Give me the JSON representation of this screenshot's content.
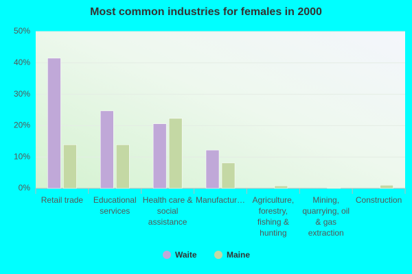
{
  "chart_data": {
    "type": "bar",
    "title": "Most common industries for females in 2000",
    "categories": [
      "Retail trade",
      "Educational services",
      "Health care & social assistance",
      "Manufactur…",
      "Agriculture, forestry, fishing & hunting",
      "Mining, quarrying, oil & gas extraction",
      "Construction"
    ],
    "series": [
      {
        "name": "Waite",
        "color": "#c0a8d8",
        "values": [
          41.5,
          24.7,
          20.6,
          12.2,
          0,
          0,
          0
        ]
      },
      {
        "name": "Maine",
        "color": "#c4d8a4",
        "values": [
          13.9,
          13.9,
          22.3,
          8.1,
          0.8,
          0.2,
          1.0
        ]
      }
    ],
    "ylim": [
      0,
      50
    ],
    "yticks": [
      {
        "value": 0,
        "label": "0%"
      },
      {
        "value": 10,
        "label": "10%"
      },
      {
        "value": 20,
        "label": "20%"
      },
      {
        "value": 30,
        "label": "30%"
      },
      {
        "value": 40,
        "label": "40%"
      },
      {
        "value": 50,
        "label": "50%"
      }
    ],
    "grid": true
  }
}
